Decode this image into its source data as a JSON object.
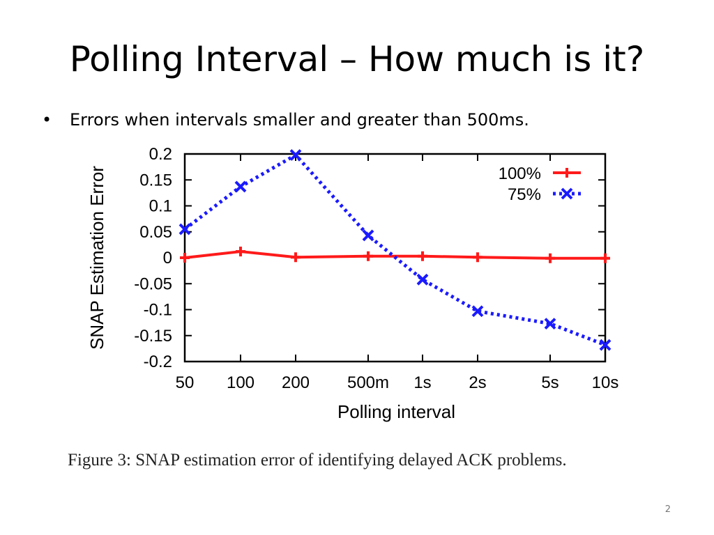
{
  "slide": {
    "title": "Polling Interval – How much is it?",
    "bullet": "Errors when intervals smaller and greater than 500ms.",
    "bullet_marker": "•",
    "caption": "Figure 3:  SNAP estimation error of identifying delayed ACK problems.",
    "page_number": "2"
  },
  "chart_data": {
    "type": "line",
    "xlabel": "Polling interval",
    "ylabel": "SNAP Estimation Error",
    "categories": [
      "50",
      "100",
      "200",
      "500m",
      "1s",
      "2s",
      "5s",
      "10s"
    ],
    "ylim": [
      -0.2,
      0.2
    ],
    "yticks": [
      "0.2",
      "0.15",
      "0.1",
      "0.05",
      "0",
      "-0.05",
      "-0.1",
      "-0.15",
      "-0.2"
    ],
    "ytick_values": [
      0.2,
      0.15,
      0.1,
      0.05,
      0,
      -0.05,
      -0.1,
      -0.15,
      -0.2
    ],
    "legend_position": "top-right",
    "grid": false,
    "series": [
      {
        "name": "100%",
        "color": "#ff1a1a",
        "marker": "plus",
        "line": "solid",
        "values": [
          0,
          0.012,
          0.001,
          0.003,
          0.003,
          0.001,
          -0.001,
          -0.001
        ]
      },
      {
        "name": "75%",
        "color": "#1a1aff",
        "marker": "x",
        "line": "dotted",
        "values": [
          0.055,
          0.137,
          0.198,
          0.043,
          -0.042,
          -0.103,
          -0.127,
          -0.168
        ]
      }
    ]
  }
}
